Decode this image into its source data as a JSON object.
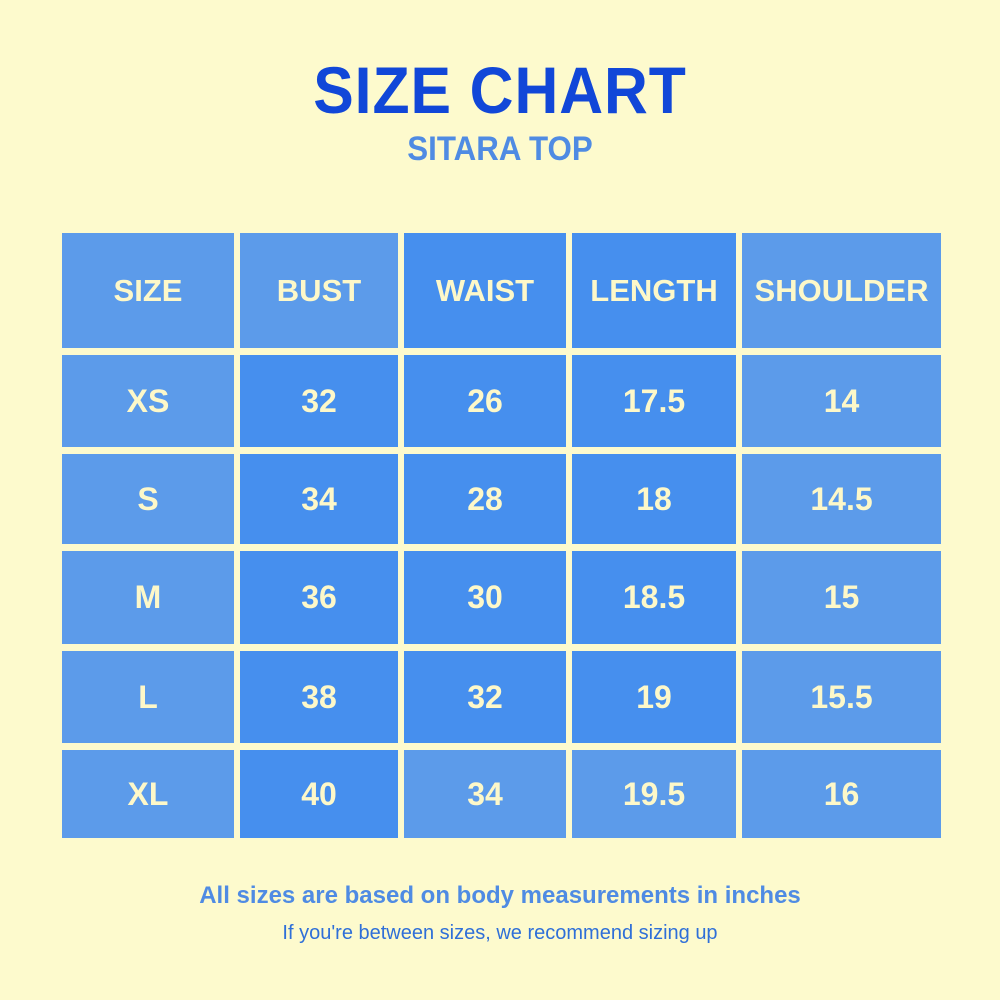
{
  "header": {
    "title": "SIZE CHART",
    "subtitle": "SITARA TOP"
  },
  "table": {
    "columns": [
      "SIZE",
      "BUST",
      "WAIST",
      "LENGTH",
      "SHOULDER"
    ],
    "rows": [
      [
        "XS",
        32,
        26,
        17.5,
        14
      ],
      [
        "S",
        34,
        28,
        18,
        14.5
      ],
      [
        "M",
        36,
        30,
        18.5,
        15
      ],
      [
        "L",
        38,
        32,
        19,
        15.5
      ],
      [
        "XL",
        40,
        34,
        19.5,
        16
      ]
    ]
  },
  "footer": {
    "note": "All sizes are based on body measurements in inches",
    "tip": "If you're between sizes, we recommend sizing up"
  }
}
